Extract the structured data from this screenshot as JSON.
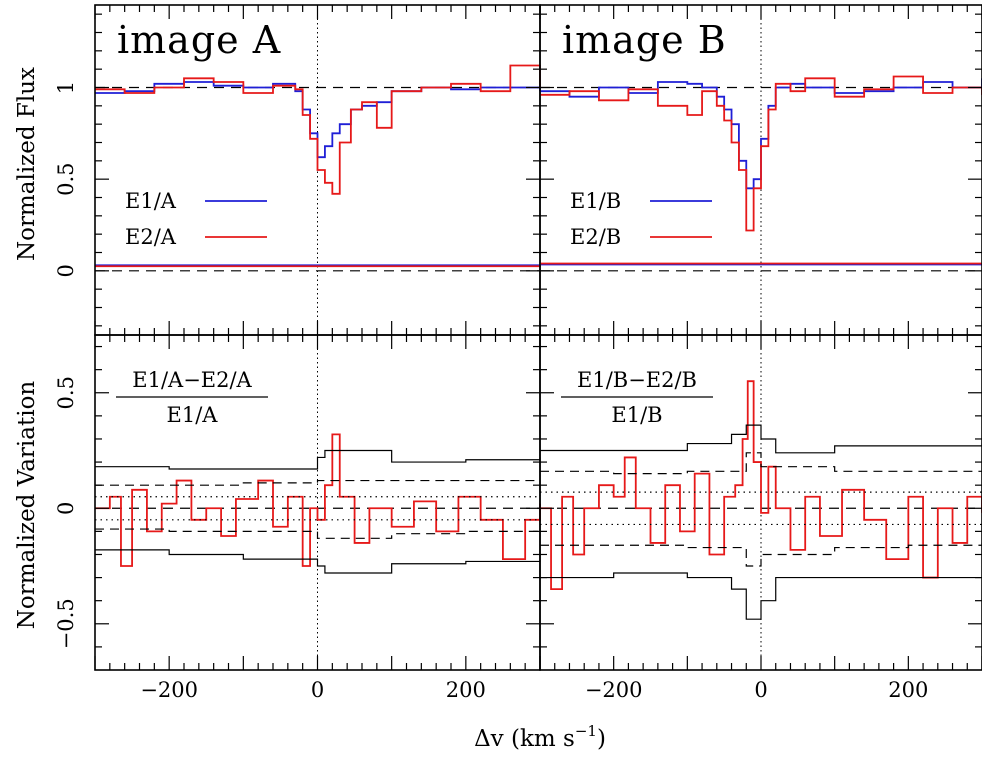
{
  "figure": {
    "ylabel_top": "Normalized Flux",
    "ylabel_bottom": "Normalized Variation",
    "xlabel": "Δv (km s",
    "xlabel_exp": "−1",
    "xlabel_close": ")"
  },
  "chart_data": [
    {
      "type": "line",
      "title": "image A",
      "xlim": [
        -300,
        300
      ],
      "ylim": [
        -0.35,
        1.45
      ],
      "ylabel": "Normalized Flux",
      "xticks": [
        -200,
        0,
        200
      ],
      "yticks": [
        0,
        0.5,
        1
      ],
      "ytick_labels": [
        "0",
        "0.5",
        "1"
      ],
      "hlines": [
        1,
        0
      ],
      "vline": 0,
      "series": [
        {
          "name": "E1/A",
          "color": "#1f1fd6",
          "x": [
            -300,
            -260,
            -220,
            -180,
            -140,
            -100,
            -60,
            -30,
            -20,
            -10,
            0,
            10,
            20,
            30,
            45,
            60,
            80,
            100,
            140,
            180,
            220,
            260,
            300
          ],
          "y": [
            0.97,
            0.98,
            1.02,
            1.03,
            1.01,
            1.0,
            1.02,
            0.98,
            0.88,
            0.75,
            0.62,
            0.68,
            0.75,
            0.8,
            0.88,
            0.9,
            0.92,
            0.98,
            1.0,
            0.99,
            1.0,
            1.0,
            0.98
          ]
        },
        {
          "name": "E2/A",
          "color": "#e61919",
          "x": [
            -300,
            -260,
            -220,
            -180,
            -140,
            -100,
            -60,
            -30,
            -20,
            -10,
            0,
            10,
            20,
            30,
            45,
            60,
            80,
            100,
            140,
            180,
            220,
            260,
            300
          ],
          "y": [
            0.99,
            0.97,
            1.0,
            1.05,
            1.03,
            0.97,
            1.01,
            0.99,
            0.85,
            0.72,
            0.55,
            0.48,
            0.42,
            0.7,
            0.88,
            0.92,
            0.78,
            0.98,
            1.0,
            1.02,
            0.98,
            1.12,
            1.0
          ]
        },
        {
          "name": "",
          "color": "#1f1fd6",
          "x": [
            -300,
            300
          ],
          "y": [
            0.03,
            0.03
          ]
        },
        {
          "name": "",
          "color": "#e61919",
          "x": [
            -300,
            300
          ],
          "y": [
            0.025,
            0.03
          ]
        }
      ]
    },
    {
      "type": "line",
      "title": "image B",
      "xlim": [
        -300,
        300
      ],
      "ylim": [
        -0.35,
        1.45
      ],
      "xticks": [
        -200,
        0,
        200
      ],
      "hlines": [
        1,
        0
      ],
      "vline": 0,
      "series": [
        {
          "name": "E1/B",
          "color": "#1f1fd6",
          "x": [
            -300,
            -260,
            -220,
            -180,
            -140,
            -100,
            -80,
            -60,
            -50,
            -40,
            -30,
            -20,
            -10,
            0,
            10,
            20,
            40,
            60,
            100,
            140,
            180,
            220,
            260,
            300
          ],
          "y": [
            0.98,
            0.95,
            1.0,
            0.97,
            1.03,
            1.02,
            1.0,
            0.95,
            0.88,
            0.8,
            0.6,
            0.45,
            0.5,
            0.72,
            0.9,
            1.0,
            1.02,
            1.0,
            0.97,
            0.98,
            1.0,
            1.03,
            1.0,
            1.05
          ]
        },
        {
          "name": "E2/B",
          "color": "#e61919",
          "x": [
            -300,
            -260,
            -220,
            -180,
            -140,
            -100,
            -80,
            -60,
            -50,
            -40,
            -30,
            -20,
            -10,
            0,
            10,
            20,
            40,
            60,
            100,
            140,
            180,
            220,
            260,
            300
          ],
          "y": [
            0.96,
            0.98,
            0.93,
            0.99,
            0.9,
            0.85,
            0.98,
            0.9,
            0.82,
            0.7,
            0.55,
            0.22,
            0.45,
            0.68,
            0.88,
            1.02,
            0.98,
            1.05,
            0.95,
            0.99,
            1.06,
            0.97,
            1.0,
            0.96
          ]
        },
        {
          "name": "",
          "color": "#1f1fd6",
          "x": [
            -300,
            300
          ],
          "y": [
            0.035,
            0.04
          ]
        },
        {
          "name": "",
          "color": "#e61919",
          "x": [
            -300,
            300
          ],
          "y": [
            0.04,
            0.045
          ]
        }
      ]
    },
    {
      "type": "line",
      "title": "",
      "xlim": [
        -300,
        300
      ],
      "ylim": [
        -0.7,
        0.75
      ],
      "ylabel": "Normalized Variation",
      "xticks": [
        -200,
        0,
        200
      ],
      "xtick_labels": [
        "−200",
        "0",
        "200"
      ],
      "yticks": [
        -0.5,
        0,
        0.5
      ],
      "ytick_labels": [
        "−0.5",
        "0",
        "0.5"
      ],
      "hlines": [
        0
      ],
      "vline": 0,
      "annotation": {
        "numerator": "E1/A−E2/A",
        "denominator": "E1/A"
      },
      "series": [
        {
          "name": "E1/A−E2/A",
          "color": "#e61919",
          "x": [
            -300,
            -280,
            -265,
            -250,
            -230,
            -210,
            -190,
            -170,
            -150,
            -130,
            -110,
            -80,
            -60,
            -40,
            -20,
            -10,
            0,
            10,
            20,
            30,
            50,
            70,
            100,
            130,
            160,
            190,
            220,
            250,
            280,
            300
          ],
          "y": [
            0.0,
            0.05,
            -0.25,
            0.08,
            -0.1,
            0.02,
            0.12,
            -0.05,
            0.0,
            -0.12,
            0.04,
            0.12,
            -0.08,
            0.05,
            -0.25,
            0.0,
            -0.05,
            0.1,
            0.32,
            0.05,
            -0.15,
            0.0,
            -0.08,
            0.03,
            -0.1,
            0.05,
            -0.05,
            -0.22,
            -0.05,
            0.02
          ]
        },
        {
          "name": "",
          "color": "#000000",
          "style": "solid",
          "x": [
            -300,
            -200,
            -100,
            0,
            10,
            100,
            200,
            300
          ],
          "y": [
            0.18,
            0.17,
            0.17,
            0.22,
            0.25,
            0.2,
            0.21,
            0.22
          ]
        },
        {
          "name": "",
          "color": "#000000",
          "style": "solid",
          "x": [
            -300,
            -200,
            -100,
            0,
            10,
            100,
            200,
            300
          ],
          "y": [
            -0.18,
            -0.2,
            -0.22,
            -0.25,
            -0.28,
            -0.24,
            -0.23,
            -0.2
          ]
        },
        {
          "name": "",
          "color": "#000000",
          "style": "dashed",
          "x": [
            -300,
            -200,
            -100,
            0,
            100,
            200,
            300
          ],
          "y": [
            0.1,
            0.1,
            0.11,
            0.12,
            0.12,
            0.12,
            0.12
          ]
        },
        {
          "name": "",
          "color": "#000000",
          "style": "dashed",
          "x": [
            -300,
            -200,
            -100,
            0,
            100,
            200,
            300
          ],
          "y": [
            -0.09,
            -0.1,
            -0.1,
            -0.13,
            -0.11,
            -0.1,
            -0.1
          ]
        },
        {
          "name": "",
          "color": "#000000",
          "style": "dotted",
          "x": [
            -300,
            300
          ],
          "y": [
            0.05,
            0.06
          ]
        },
        {
          "name": "",
          "color": "#000000",
          "style": "dotted",
          "x": [
            -300,
            300
          ],
          "y": [
            -0.05,
            -0.06
          ]
        }
      ]
    },
    {
      "type": "line",
      "title": "",
      "xlim": [
        -300,
        300
      ],
      "ylim": [
        -0.7,
        0.75
      ],
      "xticks": [
        -200,
        0,
        200
      ],
      "xtick_labels": [
        "−200",
        "0",
        "200"
      ],
      "hlines": [
        0
      ],
      "vline": 0,
      "annotation": {
        "numerator": "E1/B−E2/B",
        "denominator": "E1/B"
      },
      "series": [
        {
          "name": "E1/B−E2/B",
          "color": "#e61919",
          "x": [
            -300,
            -285,
            -270,
            -255,
            -240,
            -220,
            -200,
            -185,
            -170,
            -150,
            -130,
            -110,
            -90,
            -70,
            -50,
            -35,
            -25,
            -18,
            -10,
            0,
            10,
            20,
            40,
            60,
            80,
            110,
            140,
            170,
            200,
            220,
            240,
            260,
            280,
            300
          ],
          "y": [
            0.0,
            -0.35,
            0.05,
            -0.2,
            0.0,
            0.1,
            0.05,
            0.22,
            0.0,
            -0.15,
            0.1,
            -0.1,
            0.15,
            -0.2,
            0.05,
            0.1,
            0.3,
            0.55,
            0.2,
            -0.02,
            0.18,
            0.0,
            -0.18,
            0.05,
            -0.12,
            0.08,
            -0.05,
            -0.22,
            0.05,
            -0.3,
            0.0,
            -0.15,
            0.05,
            -0.02
          ]
        },
        {
          "name": "",
          "color": "#000000",
          "style": "solid",
          "x": [
            -300,
            -200,
            -100,
            -40,
            -20,
            0,
            20,
            100,
            200,
            300
          ],
          "y": [
            0.25,
            0.25,
            0.28,
            0.32,
            0.36,
            0.3,
            0.24,
            0.27,
            0.27,
            0.28
          ]
        },
        {
          "name": "",
          "color": "#000000",
          "style": "solid",
          "x": [
            -300,
            -200,
            -100,
            -40,
            -20,
            0,
            20,
            100,
            200,
            300
          ],
          "y": [
            -0.3,
            -0.28,
            -0.3,
            -0.35,
            -0.48,
            -0.4,
            -0.3,
            -0.3,
            -0.3,
            -0.3
          ]
        },
        {
          "name": "",
          "color": "#000000",
          "style": "dashed",
          "x": [
            -300,
            -200,
            -100,
            -20,
            0,
            100,
            200,
            300
          ],
          "y": [
            0.16,
            0.15,
            0.16,
            0.24,
            0.18,
            0.16,
            0.16,
            0.16
          ]
        },
        {
          "name": "",
          "color": "#000000",
          "style": "dashed",
          "x": [
            -300,
            -200,
            -100,
            -20,
            0,
            100,
            200,
            300
          ],
          "y": [
            -0.16,
            -0.16,
            -0.17,
            -0.25,
            -0.2,
            -0.17,
            -0.16,
            -0.15
          ]
        },
        {
          "name": "",
          "color": "#000000",
          "style": "dotted",
          "x": [
            -300,
            300
          ],
          "y": [
            0.07,
            0.07
          ]
        },
        {
          "name": "",
          "color": "#000000",
          "style": "dotted",
          "x": [
            -300,
            300
          ],
          "y": [
            -0.07,
            -0.07
          ]
        }
      ]
    }
  ]
}
